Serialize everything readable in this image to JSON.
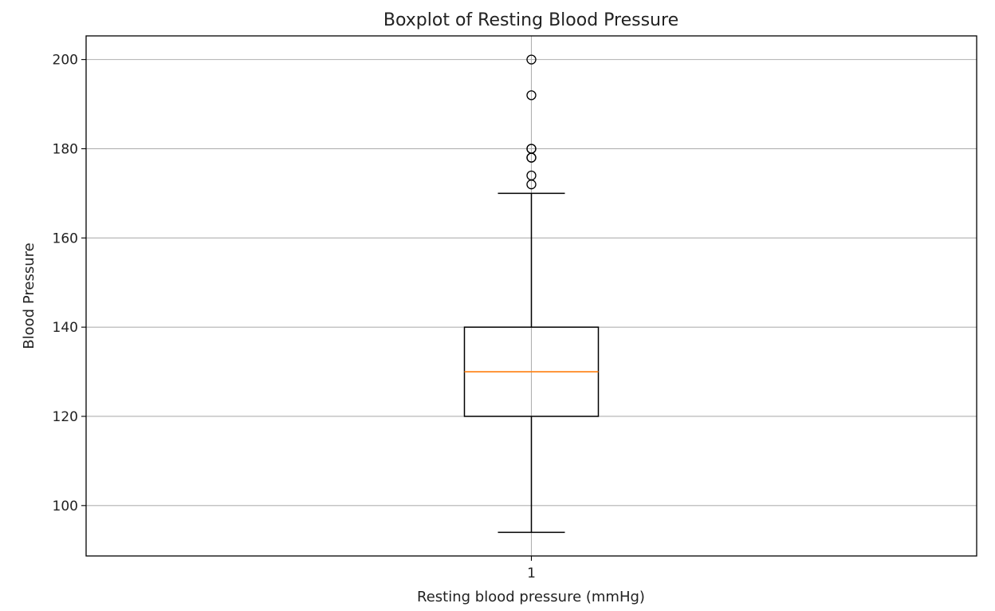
{
  "chart_data": {
    "type": "boxplot",
    "title": "Boxplot of Resting Blood Pressure",
    "xlabel": "Resting blood pressure (mmHg)",
    "ylabel": "Blood Pressure",
    "categories": [
      "1"
    ],
    "ylim": [
      88.7,
      205.3
    ],
    "yticks": [
      100,
      120,
      140,
      160,
      180,
      200
    ],
    "grid": true,
    "boxes": [
      {
        "category": "1",
        "whisker_low": 94,
        "q1": 120,
        "median": 130,
        "q3": 140,
        "whisker_high": 170,
        "outliers": [
          172,
          174,
          178,
          178,
          180,
          180,
          192,
          200
        ]
      }
    ],
    "colors": {
      "median": "#ff7f0e",
      "box": "#000000",
      "grid": "#b0b0b0",
      "outlier_edge": "#000000"
    }
  }
}
